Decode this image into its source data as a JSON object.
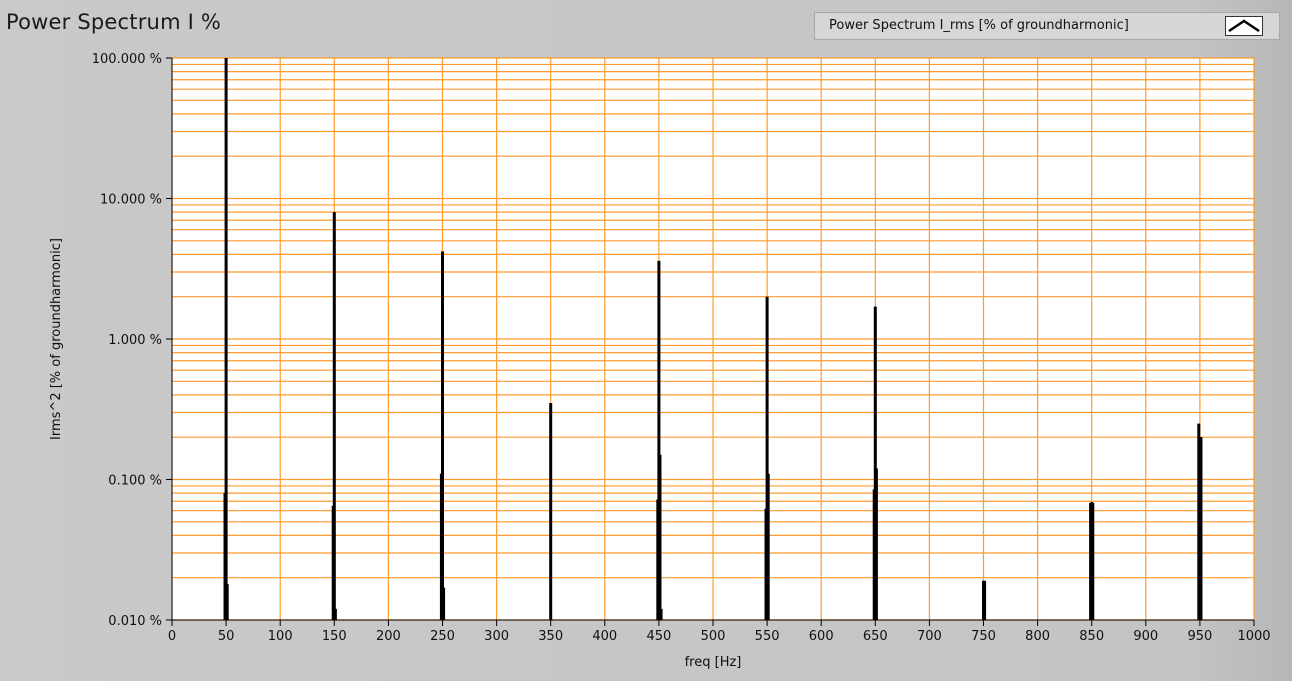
{
  "panel": {
    "title": "Power Spectrum I %",
    "legend_label": "Power Spectrum I_rms [% of groundharmonic]",
    "legend_icon": "line-plot-icon"
  },
  "colors": {
    "plot_background": "#ffffff",
    "grid": "#ff9a2e",
    "series": "#000000",
    "panel": "#c4c4c4"
  },
  "chart_data": {
    "type": "bar",
    "title": "Power Spectrum I %",
    "xlabel": "freq [Hz]",
    "ylabel": "Irms^2 [% of groundharmonic]",
    "xlim": [
      0,
      1000
    ],
    "ylim": [
      0.01,
      100
    ],
    "yscale": "log",
    "grid": true,
    "legend": "top-right",
    "x_ticks": [
      0,
      50,
      100,
      150,
      200,
      250,
      300,
      350,
      400,
      450,
      500,
      550,
      600,
      650,
      700,
      750,
      800,
      850,
      900,
      950,
      1000
    ],
    "x_tick_labels": [
      "0",
      "50",
      "100",
      "150",
      "200",
      "250",
      "300",
      "350",
      "400",
      "450",
      "500",
      "550",
      "600",
      "650",
      "700",
      "750",
      "800",
      "850",
      "900",
      "950",
      "1000"
    ],
    "y_ticks": [
      0.01,
      0.1,
      1,
      10,
      100
    ],
    "y_tick_labels": [
      "0.010 %",
      "0.100 %",
      "1.000 %",
      "10.000 %",
      "100.000 %"
    ],
    "series": [
      {
        "name": "Power Spectrum I_rms [% of groundharmonic]",
        "x": [
          49,
          50,
          51,
          149,
          150,
          151,
          249,
          250,
          251,
          350,
          449,
          450,
          451,
          452,
          549,
          550,
          551,
          649,
          650,
          651,
          750,
          751,
          849,
          850,
          851,
          949,
          950,
          951
        ],
        "values": [
          0.08,
          100,
          0.018,
          0.065,
          8.0,
          0.012,
          0.11,
          4.2,
          0.017,
          0.35,
          0.072,
          3.6,
          0.15,
          0.012,
          0.062,
          2.0,
          0.11,
          0.085,
          1.7,
          0.12,
          0.019,
          0.019,
          0.068,
          0.069,
          0.068,
          0.25,
          0.2,
          0.2
        ]
      }
    ]
  }
}
